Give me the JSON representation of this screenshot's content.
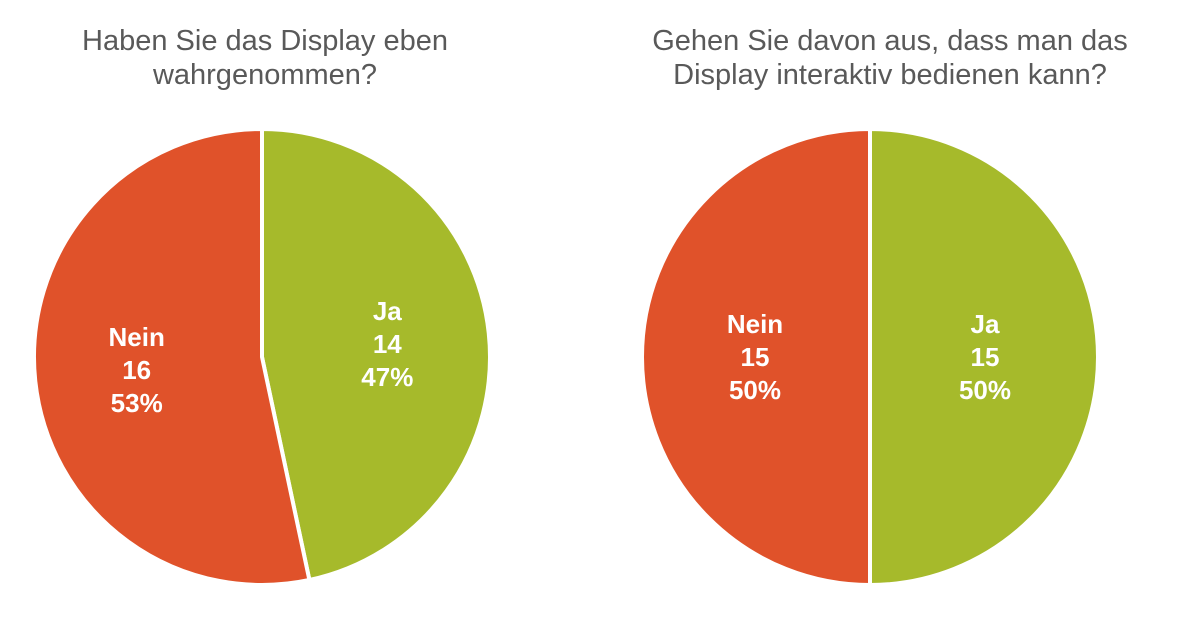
{
  "colors": {
    "nein": "#E0522A",
    "ja": "#A6BA2B",
    "title": "#595959",
    "label": "#FFFFFF"
  },
  "chart_data": [
    {
      "type": "pie",
      "title": "Haben Sie das Display eben wahrgenommen?",
      "title_lines": [
        "Haben Sie das Display eben",
        "wahrgenommen?"
      ],
      "slices": [
        {
          "label": "Ja",
          "value": 14,
          "percent": "47%",
          "color": "#A6BA2B"
        },
        {
          "label": "Nein",
          "value": 16,
          "percent": "53%",
          "color": "#E0522A"
        }
      ]
    },
    {
      "type": "pie",
      "title": "Gehen Sie davon aus, dass man das Display interaktiv bedienen kann?",
      "title_lines": [
        "Gehen Sie davon aus, dass man das",
        "Display interaktiv bedienen kann?"
      ],
      "slices": [
        {
          "label": "Ja",
          "value": 15,
          "percent": "50%",
          "color": "#A6BA2B"
        },
        {
          "label": "Nein",
          "value": 15,
          "percent": "50%",
          "color": "#E0522A"
        }
      ]
    }
  ]
}
